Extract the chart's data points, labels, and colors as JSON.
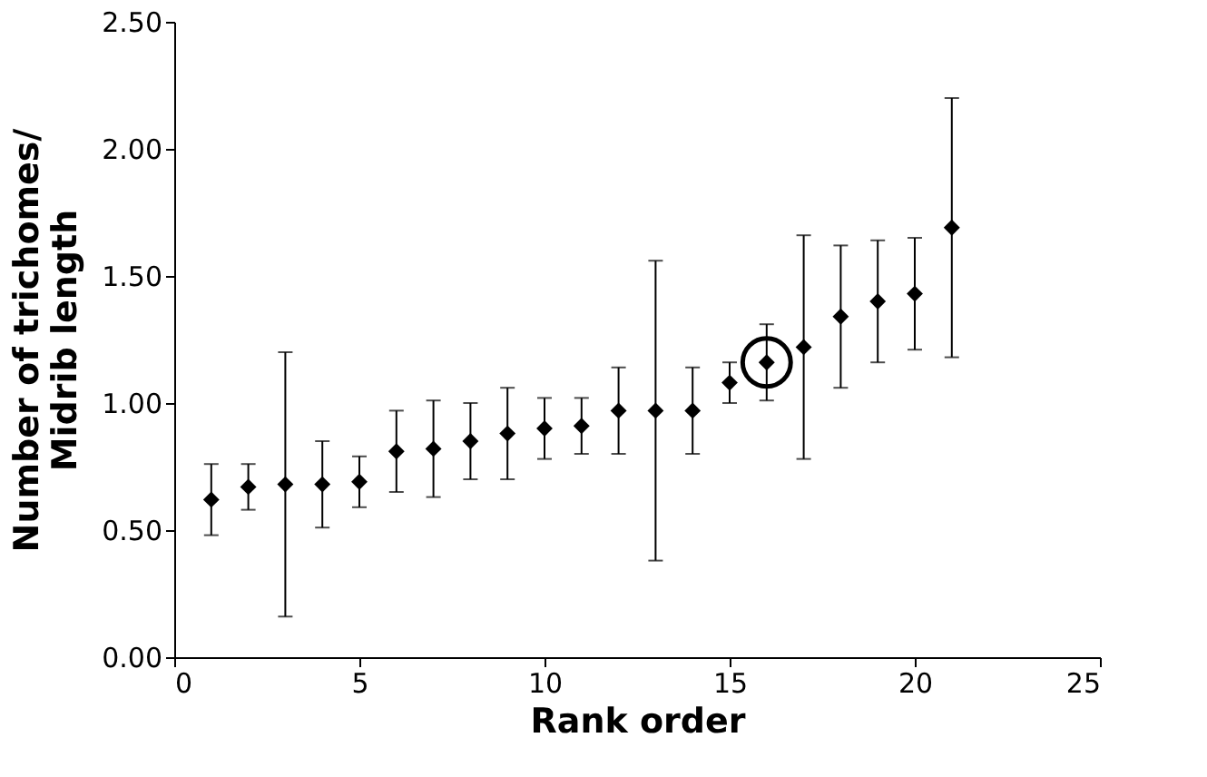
{
  "chart_data": {
    "type": "scatter",
    "xlabel": "Rank order",
    "ylabel": "Number of trichomes/\nMidrib length",
    "xlim": [
      0,
      25
    ],
    "xticks": [
      0,
      5,
      10,
      15,
      20,
      25
    ],
    "ylim": [
      0,
      2.5
    ],
    "yticks": [
      {
        "value": 0,
        "label": "0.00"
      },
      {
        "value": 0.5,
        "label": "0.50"
      },
      {
        "value": 1,
        "label": "1.00"
      },
      {
        "value": 1.5,
        "label": "1.50"
      },
      {
        "value": 2,
        "label": "2.00"
      },
      {
        "value": 2.5,
        "label": "2.50"
      }
    ],
    "grid": false,
    "series": [
      {
        "marker": "diamond",
        "color": "#000000",
        "x": [
          1,
          2,
          3,
          4,
          5,
          6,
          7,
          8,
          9,
          10,
          11,
          12,
          13,
          14,
          15,
          16,
          17,
          18,
          19,
          20,
          21
        ],
        "values": [
          0.62,
          0.67,
          0.68,
          0.68,
          0.69,
          0.81,
          0.82,
          0.85,
          0.88,
          0.9,
          0.91,
          0.97,
          0.97,
          0.97,
          1.08,
          1.16,
          1.22,
          1.34,
          1.4,
          1.43,
          1.69
        ],
        "errors": [
          [
            0.48,
            0.76
          ],
          [
            0.58,
            0.76
          ],
          [
            0.16,
            1.2
          ],
          [
            0.51,
            0.85
          ],
          [
            0.59,
            0.79
          ],
          [
            0.65,
            0.97
          ],
          [
            0.63,
            1.01
          ],
          [
            0.7,
            1.0
          ],
          [
            0.7,
            1.06
          ],
          [
            0.78,
            1.02
          ],
          [
            0.8,
            1.02
          ],
          [
            0.8,
            1.14
          ],
          [
            0.38,
            1.56
          ],
          [
            0.8,
            1.14
          ],
          [
            1.0,
            1.16
          ],
          [
            1.01,
            1.31
          ],
          [
            0.78,
            1.66
          ],
          [
            1.06,
            1.62
          ],
          [
            1.16,
            1.64
          ],
          [
            1.21,
            1.65
          ],
          [
            1.18,
            2.2
          ]
        ]
      },
      {
        "color": "#000000",
        "x": [
          16
        ],
        "values": [
          1.16
        ]
      }
    ]
  }
}
